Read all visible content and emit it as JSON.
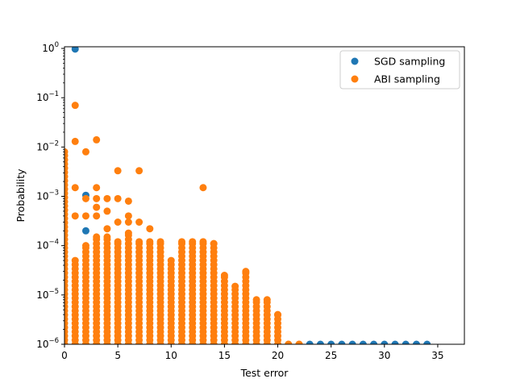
{
  "chart_data": {
    "type": "scatter",
    "xlabel": "Test error",
    "ylabel": "Probability",
    "xlim": [
      0,
      37.5
    ],
    "ylim": [
      1e-06,
      1.08
    ],
    "yscale": "log",
    "x_ticks": [
      0,
      5,
      10,
      15,
      20,
      25,
      30,
      35
    ],
    "y_ticks": [
      {
        "value": 1e-06,
        "base": "10",
        "exp": "−6"
      },
      {
        "value": 1e-05,
        "base": "10",
        "exp": "−5"
      },
      {
        "value": 0.0001,
        "base": "10",
        "exp": "−4"
      },
      {
        "value": 0.001,
        "base": "10",
        "exp": "−3"
      },
      {
        "value": 0.01,
        "base": "10",
        "exp": "−2"
      },
      {
        "value": 0.1,
        "base": "10",
        "exp": "−1"
      },
      {
        "value": 1,
        "base": "10",
        "exp": "0"
      }
    ],
    "legend_position": "top-right",
    "series": [
      {
        "name": "SGD sampling",
        "color": "#1f77b4",
        "points": [
          [
            1,
            0.97
          ],
          [
            2,
            0.00105
          ],
          [
            2,
            0.0002
          ],
          [
            23,
            1e-06
          ],
          [
            24,
            1e-06
          ],
          [
            25,
            1e-06
          ],
          [
            26,
            1e-06
          ],
          [
            27,
            1e-06
          ],
          [
            28,
            1e-06
          ],
          [
            29,
            1e-06
          ],
          [
            30,
            1e-06
          ],
          [
            31,
            1e-06
          ],
          [
            32,
            1e-06
          ],
          [
            33,
            1e-06
          ],
          [
            34,
            1e-06
          ]
        ]
      },
      {
        "name": "ABI sampling",
        "color": "#ff7f0e",
        "columns": [
          {
            "x": 0,
            "top": 0.008,
            "extra": []
          },
          {
            "x": 1,
            "top": 5e-05,
            "extra": [
              0.07,
              0.013,
              0.0015,
              0.0004
            ]
          },
          {
            "x": 2,
            "top": 0.0001,
            "extra": [
              0.008,
              0.0009,
              0.0004
            ]
          },
          {
            "x": 3,
            "top": 0.00015,
            "extra": [
              0.014,
              0.0015,
              0.0009,
              0.0006,
              0.0004
            ]
          },
          {
            "x": 4,
            "top": 0.00015,
            "extra": [
              0.0009,
              0.0005,
              0.00022
            ]
          },
          {
            "x": 5,
            "top": 0.00012,
            "extra": [
              0.0033,
              0.0009,
              0.0003
            ]
          },
          {
            "x": 6,
            "top": 0.00018,
            "extra": [
              0.0008,
              0.0004,
              0.0003
            ]
          },
          {
            "x": 7,
            "top": 0.00012,
            "extra": [
              0.0033,
              0.0003
            ]
          },
          {
            "x": 8,
            "top": 0.00012,
            "extra": [
              0.00022
            ]
          },
          {
            "x": 9,
            "top": 0.00012,
            "extra": []
          },
          {
            "x": 10,
            "top": 5e-05,
            "extra": []
          },
          {
            "x": 11,
            "top": 0.00012,
            "extra": []
          },
          {
            "x": 12,
            "top": 0.00012,
            "extra": []
          },
          {
            "x": 13,
            "top": 0.00012,
            "extra": [
              0.0015
            ]
          },
          {
            "x": 14,
            "top": 0.00011,
            "extra": []
          },
          {
            "x": 15,
            "top": 2.5e-05,
            "extra": []
          },
          {
            "x": 16,
            "top": 1.5e-05,
            "extra": []
          },
          {
            "x": 17,
            "top": 3e-05,
            "extra": []
          },
          {
            "x": 18,
            "top": 8e-06,
            "extra": []
          },
          {
            "x": 19,
            "top": 8e-06,
            "extra": []
          },
          {
            "x": 20,
            "top": 4e-06,
            "extra": []
          },
          {
            "x": 21,
            "top": 1e-06,
            "extra": []
          },
          {
            "x": 22,
            "top": 1e-06,
            "extra": []
          }
        ]
      }
    ]
  }
}
